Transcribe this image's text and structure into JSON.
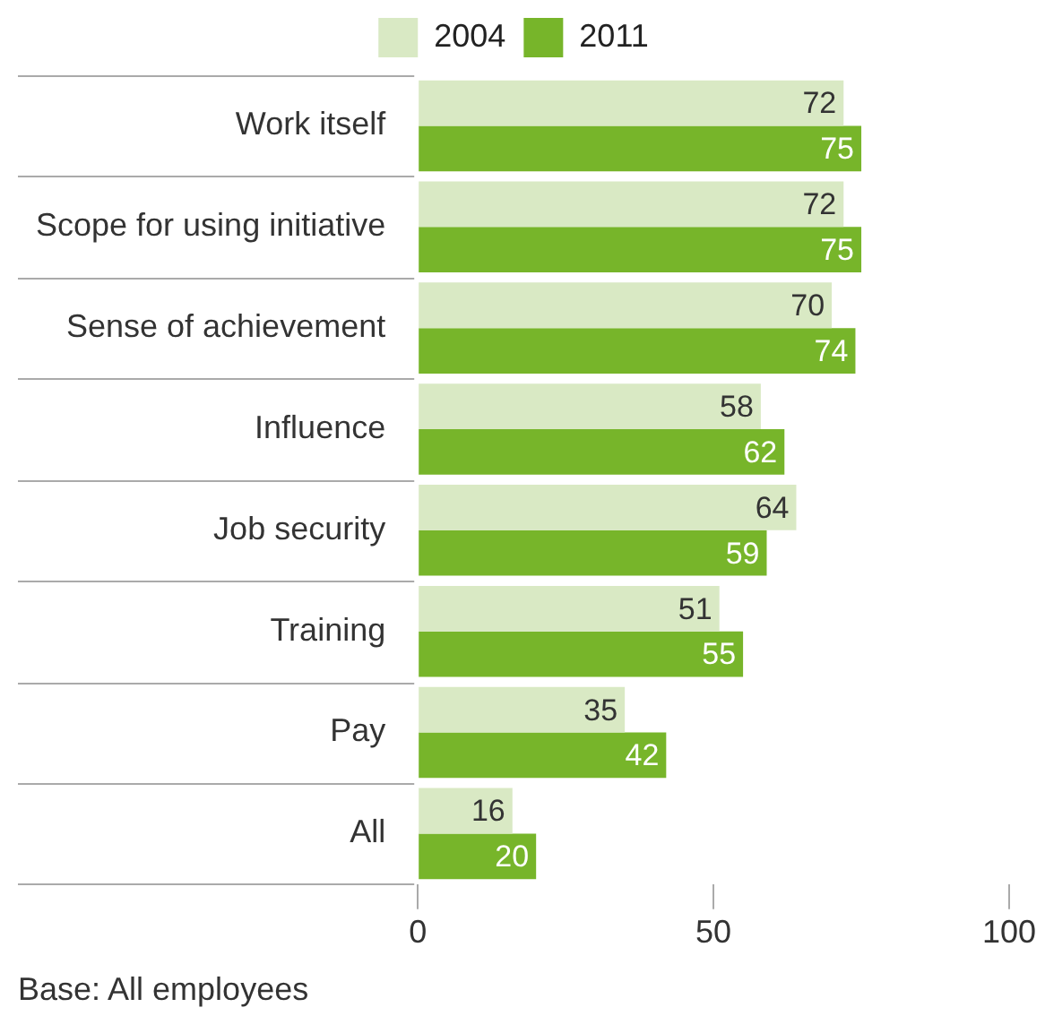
{
  "chart_data": {
    "type": "bar",
    "orientation": "horizontal",
    "categories": [
      "Work itself",
      "Scope for using initiative",
      "Sense of achievement",
      "Influence",
      "Job security",
      "Training",
      "Pay",
      "All"
    ],
    "series": [
      {
        "name": "2004",
        "color": "#d9e9c4",
        "values": [
          72,
          72,
          70,
          58,
          64,
          51,
          35,
          16
        ]
      },
      {
        "name": "2011",
        "color": "#77b52a",
        "values": [
          75,
          75,
          74,
          62,
          59,
          55,
          42,
          20
        ]
      }
    ],
    "xlim": [
      0,
      100
    ],
    "xticks": [
      0,
      50,
      100
    ],
    "data_labels": true,
    "legend": "top",
    "annotations": [
      "Base: All employees"
    ]
  }
}
